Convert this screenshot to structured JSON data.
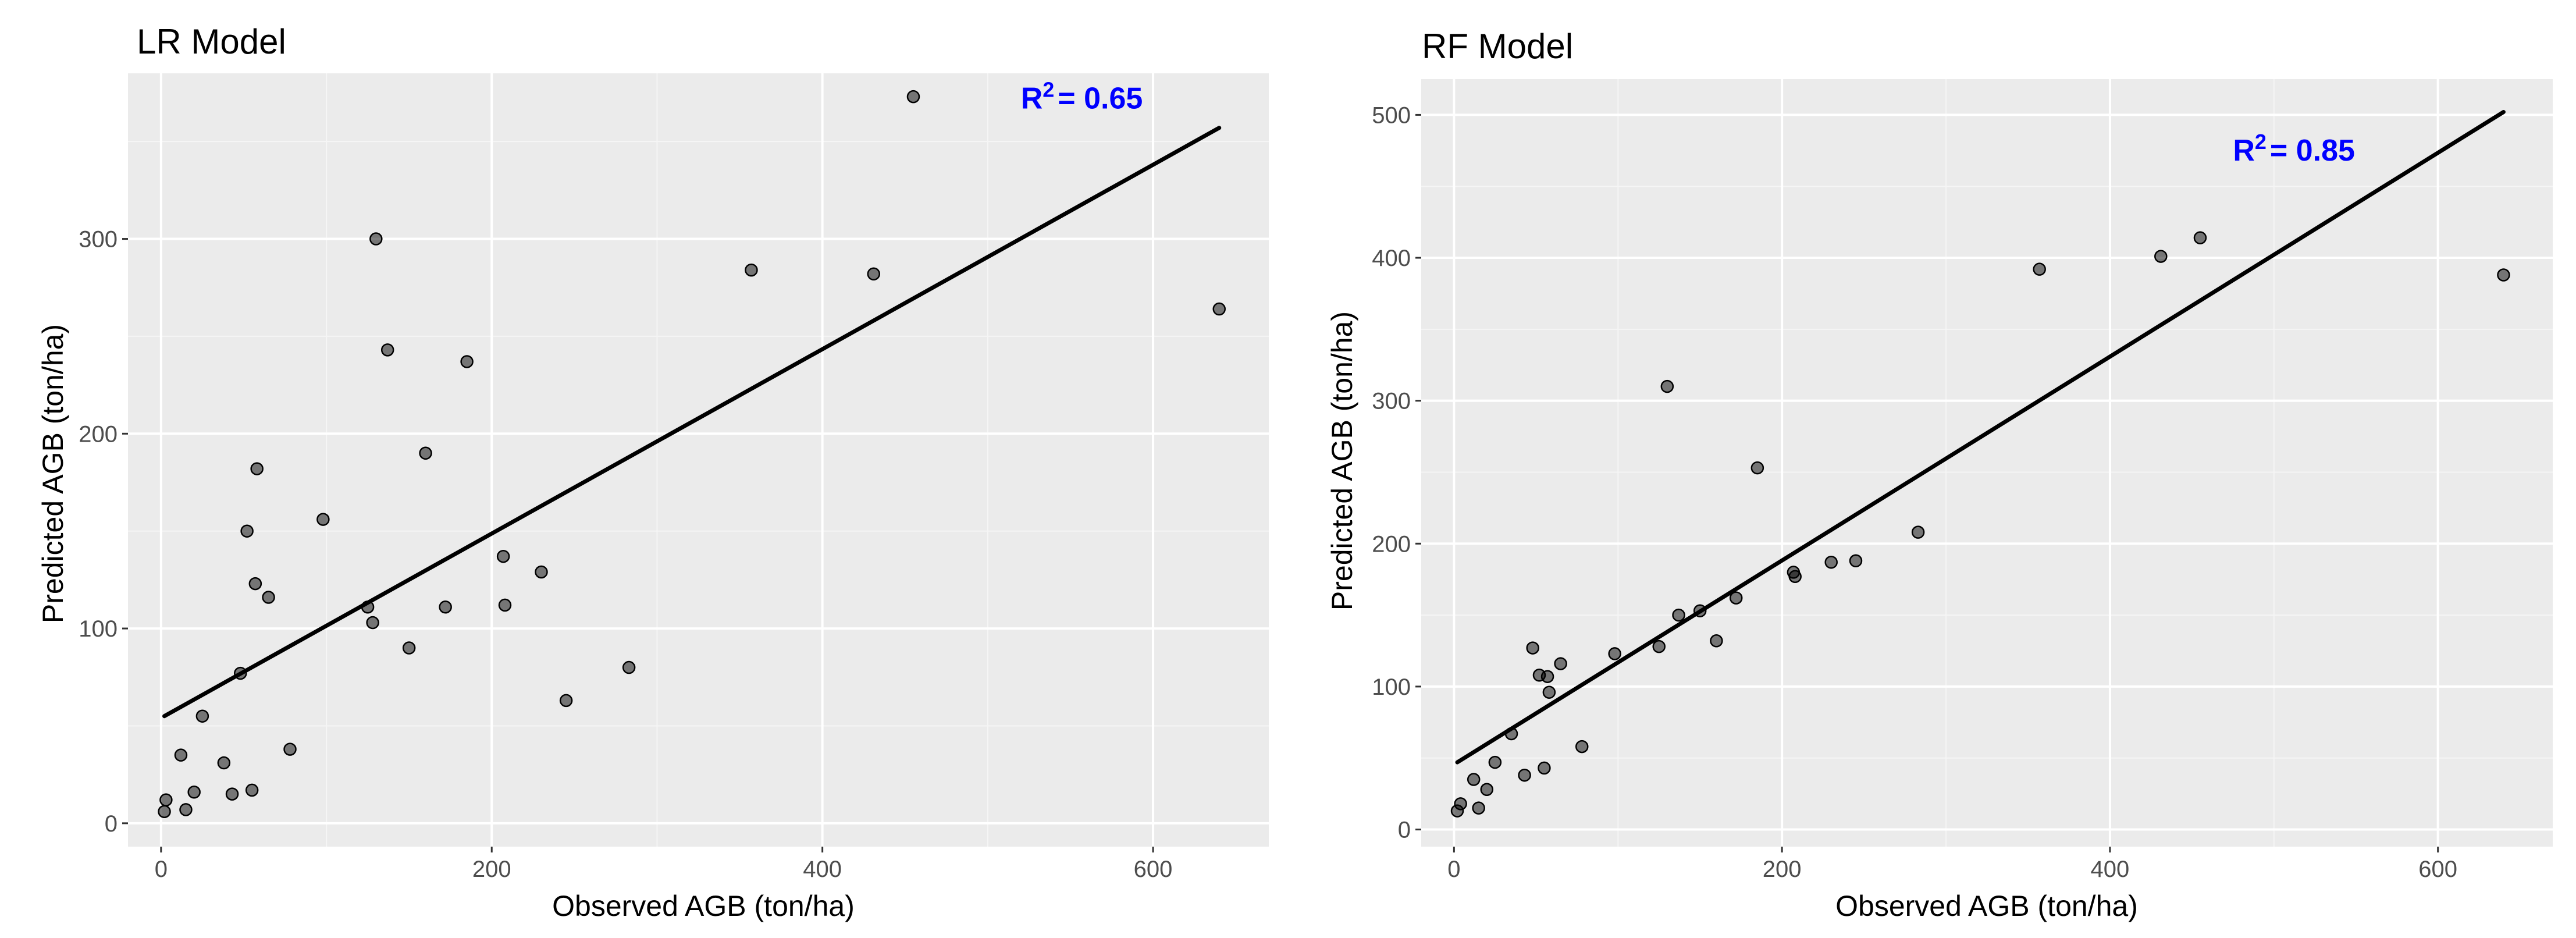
{
  "chart_data": [
    {
      "type": "scatter",
      "title": "LR Model",
      "xlabel": "Observed AGB (ton/ha)",
      "ylabel": "Predicted AGB (ton/ha)",
      "xlim": [
        -20,
        670
      ],
      "ylim": [
        -12,
        385
      ],
      "x_ticks": [
        0,
        200,
        400,
        600
      ],
      "y_ticks": [
        0,
        100,
        200,
        300
      ],
      "grid": true,
      "annotation": {
        "r2_label": "R",
        "r2_sup": "2",
        "r2_value": "= 0.65",
        "x": 520,
        "y": 367
      },
      "fit_line": {
        "x": [
          2,
          640
        ],
        "y": [
          55,
          357
        ],
        "color": "#000000"
      },
      "points": {
        "x": [
          2,
          3,
          12,
          15,
          20,
          25,
          38,
          43,
          48,
          52,
          55,
          57,
          58,
          65,
          78,
          98,
          125,
          128,
          130,
          137,
          150,
          160,
          172,
          185,
          207,
          208,
          230,
          245,
          283,
          357,
          431,
          455,
          640
        ],
        "y": [
          6,
          12,
          35,
          7,
          16,
          55,
          31,
          15,
          77,
          150,
          17,
          123,
          182,
          116,
          38,
          156,
          111,
          103,
          300,
          243,
          90,
          190,
          111,
          237,
          137,
          112,
          129,
          63,
          80,
          284,
          282,
          373,
          264
        ]
      }
    },
    {
      "type": "scatter",
      "title": "RF Model",
      "xlabel": "Observed AGB (ton/ha)",
      "ylabel": "Predicted AGB (ton/ha)",
      "xlim": [
        -20,
        670
      ],
      "ylim": [
        -12,
        525
      ],
      "x_ticks": [
        0,
        200,
        400,
        600
      ],
      "y_ticks": [
        0,
        100,
        200,
        300,
        400,
        500
      ],
      "grid": true,
      "annotation": {
        "r2_label": "R",
        "r2_sup": "2",
        "r2_value": "= 0.85",
        "x": 475,
        "y": 468
      },
      "fit_line": {
        "x": [
          2,
          640
        ],
        "y": [
          47,
          502
        ],
        "color": "#000000"
      },
      "points": {
        "x": [
          2,
          4,
          12,
          15,
          20,
          25,
          35,
          43,
          48,
          52,
          55,
          57,
          58,
          65,
          78,
          98,
          125,
          130,
          137,
          150,
          160,
          172,
          185,
          207,
          208,
          230,
          245,
          283,
          357,
          431,
          455,
          640
        ],
        "y": [
          13,
          18,
          35,
          15,
          28,
          47,
          67,
          38,
          127,
          108,
          43,
          107,
          96,
          116,
          58,
          123,
          128,
          310,
          150,
          153,
          132,
          162,
          253,
          180,
          177,
          187,
          188,
          208,
          392,
          401,
          414,
          388
        ]
      }
    }
  ]
}
